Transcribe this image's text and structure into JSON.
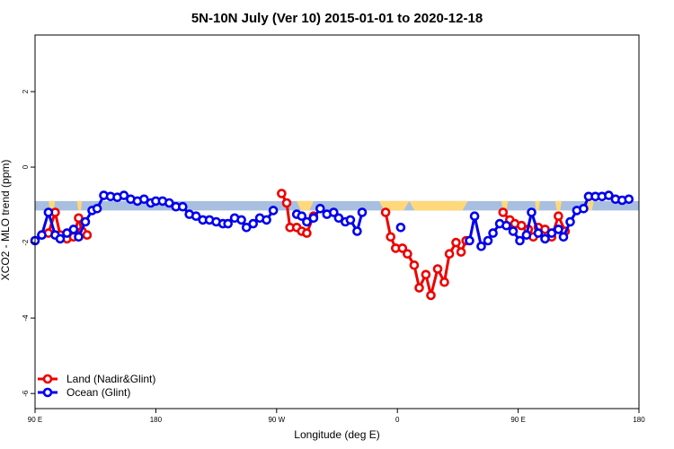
{
  "chart_data": {
    "type": "line",
    "title": "5N-10N July (Ver 10)   2015-01-01 to 2020-12-18",
    "xlabel": "Longitude (deg E)",
    "ylabel": "XCO2 - MLO trend (ppm)",
    "xlim": [
      -90,
      270
    ],
    "ylim": [
      -6.4,
      3.5
    ],
    "xticks": [
      {
        "value": -90,
        "label": "90 E"
      },
      {
        "value": -18,
        "label": "180"
      },
      {
        "value": 54,
        "label": "90 W"
      },
      {
        "value": 126,
        "label": "0"
      },
      {
        "value": 198,
        "label": "90 E"
      },
      {
        "value": 270,
        "label": "180"
      }
    ],
    "yticks": [
      {
        "value": 2,
        "label": "2"
      },
      {
        "value": 0,
        "label": "0"
      },
      {
        "value": -2,
        "label": "-2"
      },
      {
        "value": -4,
        "label": "-4"
      },
      {
        "value": -6,
        "label": "-6"
      }
    ],
    "band": {
      "ymin": -1.15,
      "ymax": -0.9,
      "color": "#a8bfe0"
    },
    "land_mask": [
      {
        "x0": -82,
        "x1": -78
      },
      {
        "x0": -65,
        "x1": -62
      },
      {
        "x0": 66,
        "x1": 76
      },
      {
        "x0": 115,
        "x1": 133
      },
      {
        "x0": 133,
        "x1": 168
      },
      {
        "x0": 188,
        "x1": 192
      },
      {
        "x0": 208,
        "x1": 211
      },
      {
        "x0": 220,
        "x1": 224
      },
      {
        "x0": 239,
        "x1": 243
      }
    ],
    "land_color": "#ffd87a",
    "legend_position": "bottom-left",
    "series": [
      {
        "name": "Land (Nadir&Glint)",
        "color": "#ee0000",
        "segments": [
          [
            [
              -86,
              -1.8
            ],
            [
              -82,
              -1.75
            ],
            [
              -78,
              -1.2
            ],
            [
              -75,
              -1.8
            ],
            [
              -71,
              -1.9
            ],
            [
              -67,
              -1.85
            ],
            [
              -64,
              -1.35
            ],
            [
              -62,
              -1.7
            ],
            [
              -59,
              -1.8
            ]
          ],
          [
            [
              57,
              -0.7
            ],
            [
              60,
              -0.95
            ],
            [
              62,
              -1.6
            ],
            [
              66,
              -1.6
            ],
            [
              69,
              -1.7
            ],
            [
              72,
              -1.75
            ],
            [
              76,
              -1.3
            ]
          ],
          [
            [
              119,
              -1.2
            ],
            [
              122,
              -1.85
            ],
            [
              125,
              -2.15
            ],
            [
              129,
              -2.15
            ],
            [
              132,
              -2.3
            ],
            [
              136,
              -2.6
            ],
            [
              139,
              -3.2
            ],
            [
              143,
              -2.85
            ],
            [
              146,
              -3.4
            ],
            [
              150,
              -2.7
            ],
            [
              154,
              -3.05
            ],
            [
              157,
              -2.3
            ],
            [
              161,
              -2.0
            ],
            [
              164,
              -2.25
            ],
            [
              167,
              -1.95
            ]
          ],
          [
            [
              189,
              -1.2
            ],
            [
              193,
              -1.4
            ],
            [
              196,
              -1.5
            ],
            [
              200,
              -1.55
            ],
            [
              204,
              -1.65
            ],
            [
              207,
              -1.85
            ],
            [
              210,
              -1.6
            ],
            [
              214,
              -1.65
            ],
            [
              218,
              -1.85
            ],
            [
              222,
              -1.3
            ],
            [
              226,
              -1.7
            ]
          ]
        ]
      },
      {
        "name": "Ocean (Glint)",
        "color": "#0000ee",
        "segments": [
          [
            [
              -90,
              -1.95
            ],
            [
              -86,
              -1.8
            ],
            [
              -82,
              -1.2
            ],
            [
              -78,
              -1.8
            ],
            [
              -75,
              -1.9
            ],
            [
              -71,
              -1.75
            ],
            [
              -67,
              -1.65
            ],
            [
              -64,
              -1.85
            ],
            [
              -60,
              -1.45
            ],
            [
              -56,
              -1.15
            ],
            [
              -53,
              -1.1
            ],
            [
              -49,
              -0.75
            ],
            [
              -45,
              -0.78
            ],
            [
              -41,
              -0.8
            ],
            [
              -37,
              -0.75
            ],
            [
              -33,
              -0.85
            ],
            [
              -29,
              -0.9
            ],
            [
              -25,
              -0.85
            ],
            [
              -21,
              -0.95
            ],
            [
              -18,
              -0.9
            ],
            [
              -14,
              -0.9
            ],
            [
              -10,
              -0.95
            ],
            [
              -6,
              -1.05
            ],
            [
              -2,
              -1.05
            ],
            [
              2,
              -1.25
            ],
            [
              6,
              -1.3
            ],
            [
              10,
              -1.4
            ],
            [
              14,
              -1.4
            ],
            [
              18,
              -1.45
            ],
            [
              22,
              -1.5
            ],
            [
              25,
              -1.5
            ],
            [
              29,
              -1.35
            ],
            [
              33,
              -1.4
            ],
            [
              36,
              -1.6
            ],
            [
              40,
              -1.5
            ],
            [
              44,
              -1.35
            ],
            [
              48,
              -1.4
            ],
            [
              52,
              -1.15
            ]
          ],
          [
            [
              66,
              -1.25
            ],
            [
              69,
              -1.3
            ],
            [
              72,
              -1.45
            ],
            [
              76,
              -1.35
            ],
            [
              80,
              -1.1
            ],
            [
              84,
              -1.25
            ],
            [
              88,
              -1.2
            ],
            [
              91,
              -1.35
            ],
            [
              95,
              -1.45
            ],
            [
              98,
              -1.4
            ],
            [
              102,
              -1.7
            ],
            [
              105,
              -1.2
            ]
          ],
          [
            [
              128,
              -1.6
            ]
          ],
          [
            [
              169,
              -1.95
            ],
            [
              172,
              -1.3
            ],
            [
              176,
              -2.1
            ],
            [
              180,
              -1.95
            ],
            [
              183,
              -1.75
            ],
            [
              187,
              -1.5
            ],
            [
              191,
              -1.55
            ],
            [
              195,
              -1.7
            ],
            [
              199,
              -1.95
            ],
            [
              203,
              -1.8
            ],
            [
              206,
              -1.2
            ],
            [
              210,
              -1.75
            ],
            [
              214,
              -1.9
            ],
            [
              218,
              -1.75
            ],
            [
              222,
              -1.65
            ],
            [
              225,
              -1.85
            ],
            [
              229,
              -1.45
            ],
            [
              233,
              -1.15
            ],
            [
              237,
              -1.1
            ],
            [
              240,
              -0.78
            ],
            [
              244,
              -0.78
            ],
            [
              248,
              -0.78
            ],
            [
              252,
              -0.75
            ],
            [
              256,
              -0.85
            ],
            [
              260,
              -0.88
            ],
            [
              264,
              -0.85
            ]
          ]
        ]
      }
    ]
  }
}
